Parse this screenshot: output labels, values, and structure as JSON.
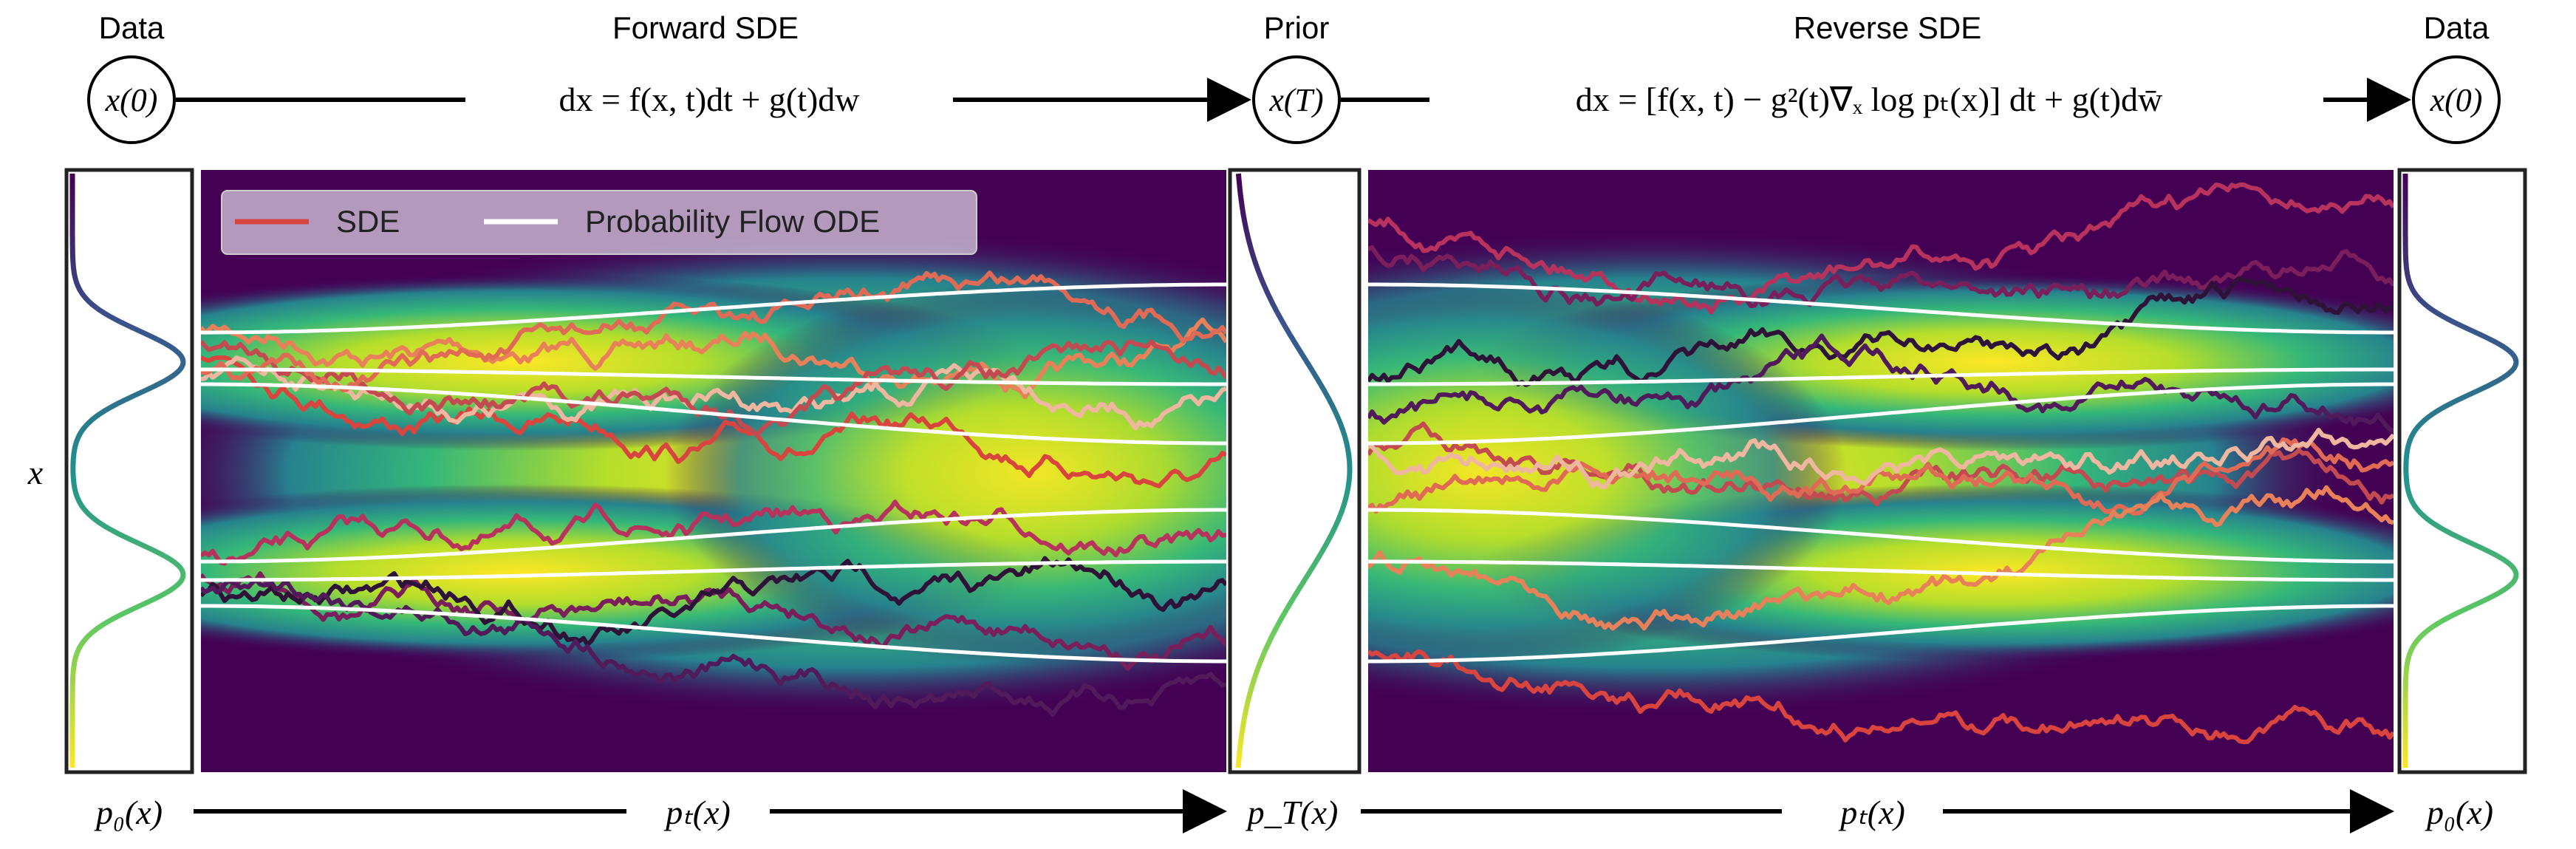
{
  "header": {
    "data_left": "Data",
    "forward_title": "Forward SDE",
    "prior": "Prior",
    "reverse_title": "Reverse SDE",
    "data_right": "Data"
  },
  "nodes": {
    "x0_left": "x(0)",
    "xT": "x(T)",
    "x0_right": "x(0)"
  },
  "equations": {
    "forward": "dx = f(x, t)dt + g(t)dw",
    "reverse": "dx = [f(x, t) − g²(t)∇ₓ log pₜ(x)] dt + g(t)dw̄"
  },
  "axis": {
    "y_label": "x",
    "p0_left": "p₀(x)",
    "pt_forward": "pₜ(x)",
    "pT": "p_T(x)",
    "pt_reverse": "pₜ(x)",
    "p0_right": "p₀(x)"
  },
  "legend": {
    "sde": "SDE",
    "ode": "Probability Flow ODE"
  },
  "colors": {
    "arrow": "#000000",
    "ode_line": "#ffffff",
    "sde_legend": "#d9443f",
    "heatmap_low": "#440154",
    "heatmap_mid": "#21908d",
    "heatmap_high": "#fde725"
  }
}
